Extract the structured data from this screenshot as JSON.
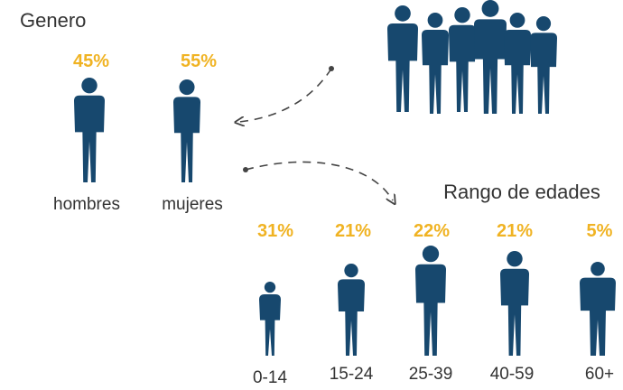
{
  "gender": {
    "title": "Genero",
    "items": [
      {
        "label": "hombres",
        "percent": "45%"
      },
      {
        "label": "mujeres",
        "percent": "55%"
      }
    ]
  },
  "age": {
    "title": "Rango de edades",
    "items": [
      {
        "label": "0-14",
        "percent": "31%"
      },
      {
        "label": "15-24",
        "percent": "21%"
      },
      {
        "label": "25-39",
        "percent": "22%"
      },
      {
        "label": "40-59",
        "percent": "21%"
      },
      {
        "label": "60+",
        "percent": "5%"
      }
    ]
  }
}
